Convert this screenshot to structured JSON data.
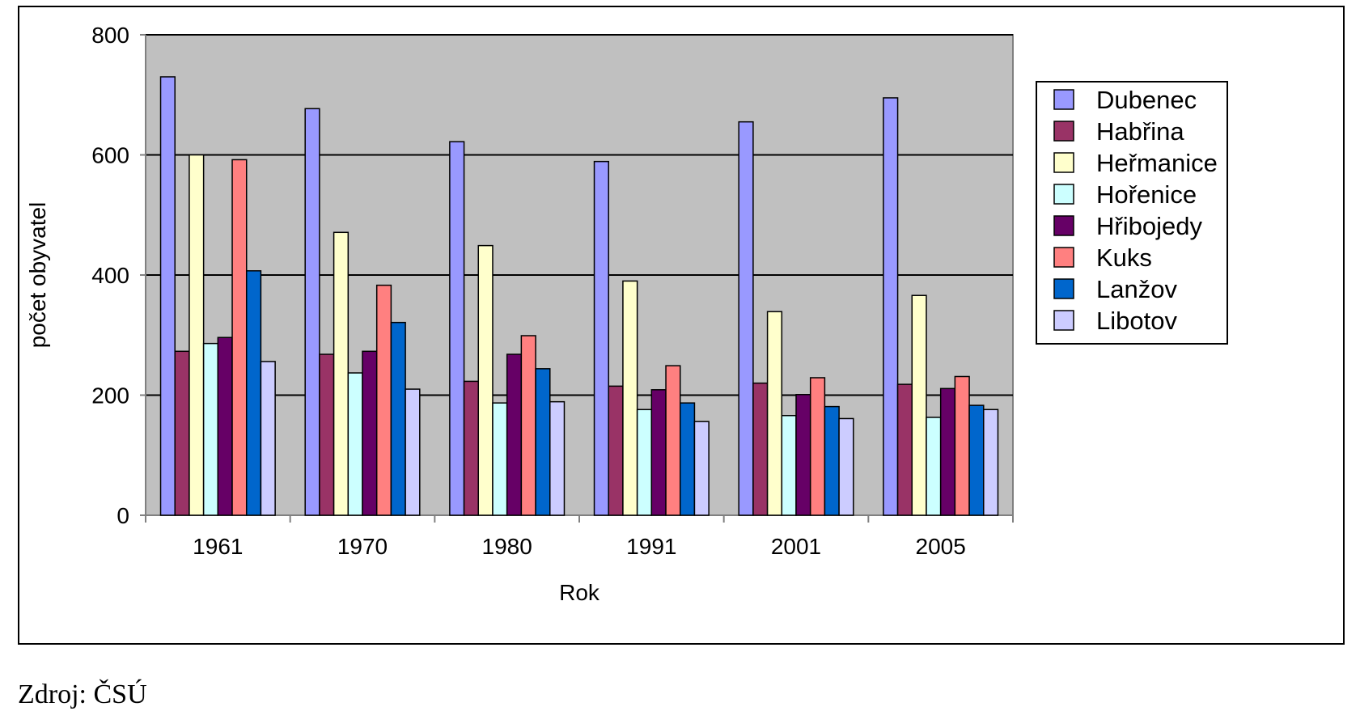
{
  "chart_data": {
    "type": "bar",
    "title": "",
    "xlabel": "Rok",
    "ylabel": "počet obyvatel",
    "ylim": [
      0,
      800
    ],
    "yticks": [
      0,
      200,
      400,
      600,
      800
    ],
    "grid": "horizontal",
    "legend_position": "right",
    "plot_background": "#c0c0c0",
    "categories": [
      "1961",
      "1970",
      "1980",
      "1991",
      "2001",
      "2005"
    ],
    "series": [
      {
        "name": "Dubenec",
        "color": "#9999ff",
        "values": [
          730,
          677,
          622,
          589,
          655,
          695
        ]
      },
      {
        "name": "Habřina",
        "color": "#993366",
        "values": [
          273,
          268,
          223,
          215,
          220,
          218
        ]
      },
      {
        "name": "Heřmanice",
        "color": "#ffffcc",
        "values": [
          600,
          471,
          449,
          390,
          339,
          366
        ]
      },
      {
        "name": "Hořenice",
        "color": "#ccffff",
        "values": [
          286,
          237,
          187,
          176,
          166,
          163
        ]
      },
      {
        "name": "Hřibojedy",
        "color": "#660066",
        "values": [
          296,
          273,
          268,
          209,
          201,
          211
        ]
      },
      {
        "name": "Kuks",
        "color": "#ff8080",
        "values": [
          592,
          383,
          299,
          249,
          229,
          231
        ]
      },
      {
        "name": "Lanžov",
        "color": "#0066cc",
        "values": [
          407,
          321,
          244,
          187,
          181,
          183
        ]
      },
      {
        "name": "Libotov",
        "color": "#ccccff",
        "values": [
          256,
          210,
          189,
          156,
          161,
          176
        ]
      }
    ]
  },
  "source_note": "Zdroj: ČSÚ"
}
